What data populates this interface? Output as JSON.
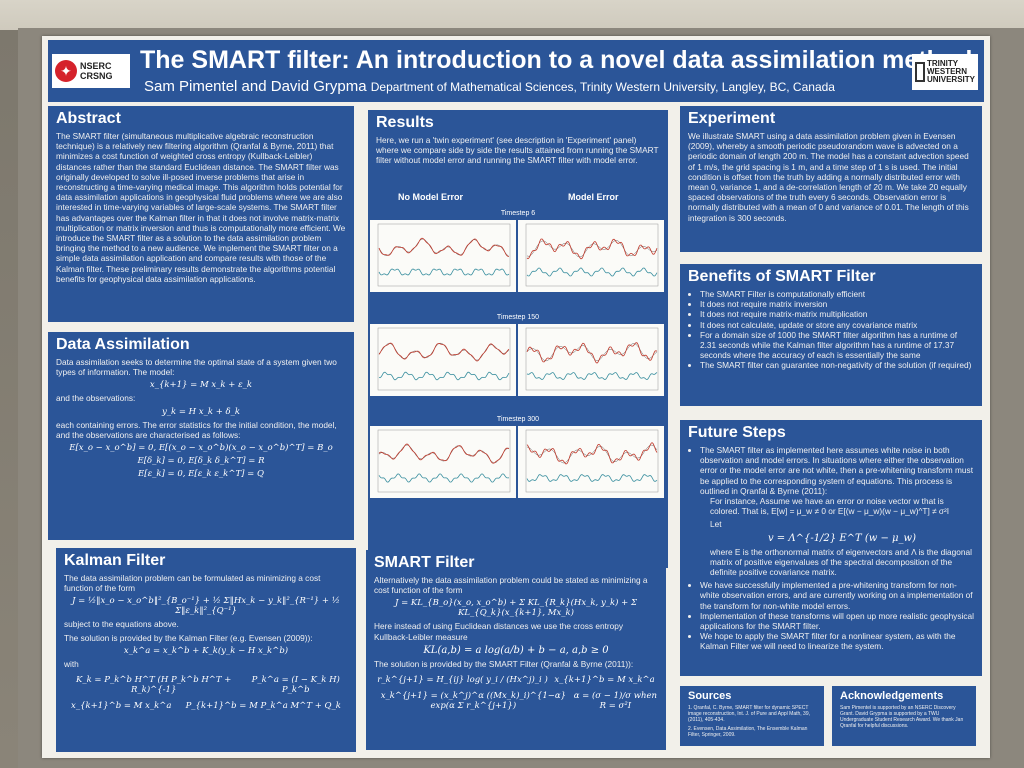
{
  "header": {
    "title": "The SMART filter: An introduction to a novel data assimilation method",
    "authors": "Sam Pimentel and David Grypma",
    "department": "Department of Mathematical Sciences, Trinity Western University, Langley, BC, Canada",
    "logo_left": {
      "line1": "NSERC",
      "line2": "CRSNG"
    },
    "logo_right": {
      "line1": "TRINITY",
      "line2": "WESTERN",
      "line3": "UNIVERSITY"
    }
  },
  "abstract": {
    "heading": "Abstract",
    "text": "The SMART filter (simultaneous multiplicative algebraic reconstruction technique) is a relatively new filtering algorithm (Qranfal & Byrne, 2011) that minimizes a cost function of weighted cross entropy (Kullback-Leibler) distances rather than the standard Euclidean distance. The SMART filter was originally developed to solve ill-posed inverse problems that arise in reconstructing a time-varying medical image. This algorithm holds potential for data assimilation applications in geophysical fluid problems where we are also interested in time-varying variables of large-scale systems. The SMART filter has advantages over the Kalman filter in that it does not involve matrix-matrix multiplication or matrix inversion and thus is computationally more efficient. We introduce the SMART filter as a solution to the data assimilation problem bringing the method to a new audience. We implement the SMART filter on a simple data assimilation application and compare results with those of the Kalman filter. These preliminary results demonstrate the algorithms potential benefits for geophysical data assimilation applications."
  },
  "data_assimilation": {
    "heading": "Data Assimilation",
    "intro": "Data assimilation seeks to determine the optimal state of a system given two types of information. The model:",
    "eq_model": "x_{k+1} = M x_k + ε_k",
    "and_obs": "and the observations:",
    "eq_obs": "y_k = H x_k + δ_k",
    "errors": "each containing errors. The error statistics for the initial condition, the model, and the observations are characterised as follows:",
    "eq1": "E[x_o − x_o^b] = 0, E[(x_o − x_o^b)(x_o − x_o^b)^T] = B_o",
    "eq2": "E[δ_k] = 0, E[δ_k δ_k^T] = R",
    "eq3": "E[ε_k] = 0, E[ε_k ε_k^T] = Q"
  },
  "kalman": {
    "heading": "Kalman Filter",
    "intro": "The data assimilation problem can be formulated as minimizing a cost function of the form",
    "eq_cost": "J = ½‖x_o − x_o^b‖²_{B_o⁻¹} + ½ Σ‖Hx_k − y_k‖²_{R⁻¹} + ½ Σ‖ε_k‖²_{Q⁻¹}",
    "subject": "subject to the equations above.",
    "solution": "The solution is provided by the Kalman Filter (e.g. Evensen (2009)):",
    "eq_update": "x_k^a = x_k^b + K_k(y_k − H x_k^b)",
    "with": "with",
    "eq_gain": "K_k = P_k^b H^T (H P_k^b H^T + R_k)^{-1}",
    "eq_pa": "P_k^a = (I − K_k H) P_k^b",
    "eq_fx": "x_{k+1}^b = M x_k^a",
    "eq_fp": "P_{k+1}^b = M P_k^a M^T + Q_k"
  },
  "results": {
    "heading": "Results",
    "text": "Here, we run a 'twin experiment' (see description in 'Experiment' panel) where we compare side by side the results attained from running the SMART filter without model error and running the SMART filter with model error.",
    "col_left": "No Model Error",
    "col_right": "Model Error",
    "timesteps": [
      "Timestep 6",
      "Timestep 150",
      "Timestep 300"
    ]
  },
  "smart": {
    "heading": "SMART Filter",
    "intro": "Alternatively the data assimilation problem could be stated as minimizing a cost function of the form",
    "eq_cost": "J = KL_{B_o}(x_o, x_o^b) + Σ KL_{R_k}(Hx_k, y_k) + Σ KL_{Q_k}(x_{k+1}, Mx_k)",
    "kl_text": "Here instead of using Euclidean distances we use the cross entropy Kullback-Leibler measure",
    "eq_kl": "KL(a,b) = a log(a/b) + b − a,  a,b ≥ 0",
    "solution": "The solution is provided by the SMART Filter (Qranfal & Byrne (2011)):",
    "eq_s1": "r_k^{j+1} = H_{ij} log( y_i / (Hx^j)_i )",
    "eq_s2": "x_{k+1}^b = M x_k^a",
    "eq_s3": "x_k^{j+1} = (x_k^j)^α ((Mx_k)_i)^{1−α} exp(α Σ r_k^{j+1})",
    "eq_s4": "α = (σ − 1)/σ  when  R = σ²I"
  },
  "experiment": {
    "heading": "Experiment",
    "text": "We illustrate SMART using a data assimilation problem given in Evensen (2009), whereby a smooth periodic pseudorandom wave is advected on a periodic domain of length 200 m. The model has a constant advection speed of 1 m/s, the grid spacing is 1 m, and a time step of 1 s is used. The initial condition is offset from the truth by adding a normally distributed error with mean 0, variance 1, and a de-correlation length of 20 m. We take 20 equally spaced observations of the truth every 6 seconds. Observation error is normally distributed with a mean of 0 and variance of 0.01. The length of this integration is 300 seconds."
  },
  "benefits": {
    "heading": "Benefits of SMART Filter",
    "items": [
      "The SMART Filter is computationally efficient",
      "It does not require matrix inversion",
      "It does not require matrix-matrix multiplication",
      "It does not calculate, update or store any covariance matrix",
      "For a domain size of 1000 the SMART filter algorithm has a runtime of 2.31 seconds while the Kalman filter algorithm has a runtime of 17.37 seconds where the accuracy of each is essentially the same",
      "The SMART filter can guarantee non-negativity of the solution (if required)"
    ]
  },
  "future": {
    "heading": "Future Steps",
    "item1": "The SMART filter as implemented here assumes white noise in both observation and model errors. In situations where either the observation error or the model error are not white, then a pre-whitening transform must be applied to the corresponding system of equations. This process is outlined in Qranfal & Byrne (2011):",
    "sub1": "For instance, Assume we have an error or noise vector w that is colored. That is, E[w] = μ_w ≠ 0 or E[(w − μ_w)(w − μ_w)^T] ≠ σ²I",
    "let": "Let",
    "eq_v": "v = Λ^{-1/2} E^T (w − μ_w)",
    "sub2": "where E is the orthonormal matrix of eigenvectors and Λ is the diagonal matrix of positive eigenvalues of the spectral decomposition of the definite positive covariance matrix.",
    "items": [
      "We have successfully implemented a pre-whitening transform for non-white observation errors, and are currently working on a implementation of the transform for non-white model errors.",
      "Implementation of these transforms will open up more realistic geophysical applications for the SMART filter.",
      "We hope to apply the SMART filter for a nonlinear system, as with the Kalman Filter we will need to linearize the system."
    ]
  },
  "sources": {
    "heading": "Sources",
    "text1": "1. Qranfal, C. Byrne, SMART filter for dynamic SPECT image reconstruction, Int. J. of Pure and Appl Math, 39, (2011), 405-434.",
    "text2": "2. Evensen, Data Assimilation, The Ensemble Kalman Filter, Springer, 2009."
  },
  "acknowledgements": {
    "heading": "Acknowledgements",
    "text": "Sam Pimentel is supported by an NSERC Discovery Grant. David Grypma is supported by a TWU Undergraduate Student Research Award. We thank Jan Qranfal for helpful discussions."
  },
  "colors": {
    "panel": "#2b5598",
    "poster_bg": "#f2f0ea",
    "truth_line": "#c0392b",
    "model_line": "#3a8f9f"
  }
}
